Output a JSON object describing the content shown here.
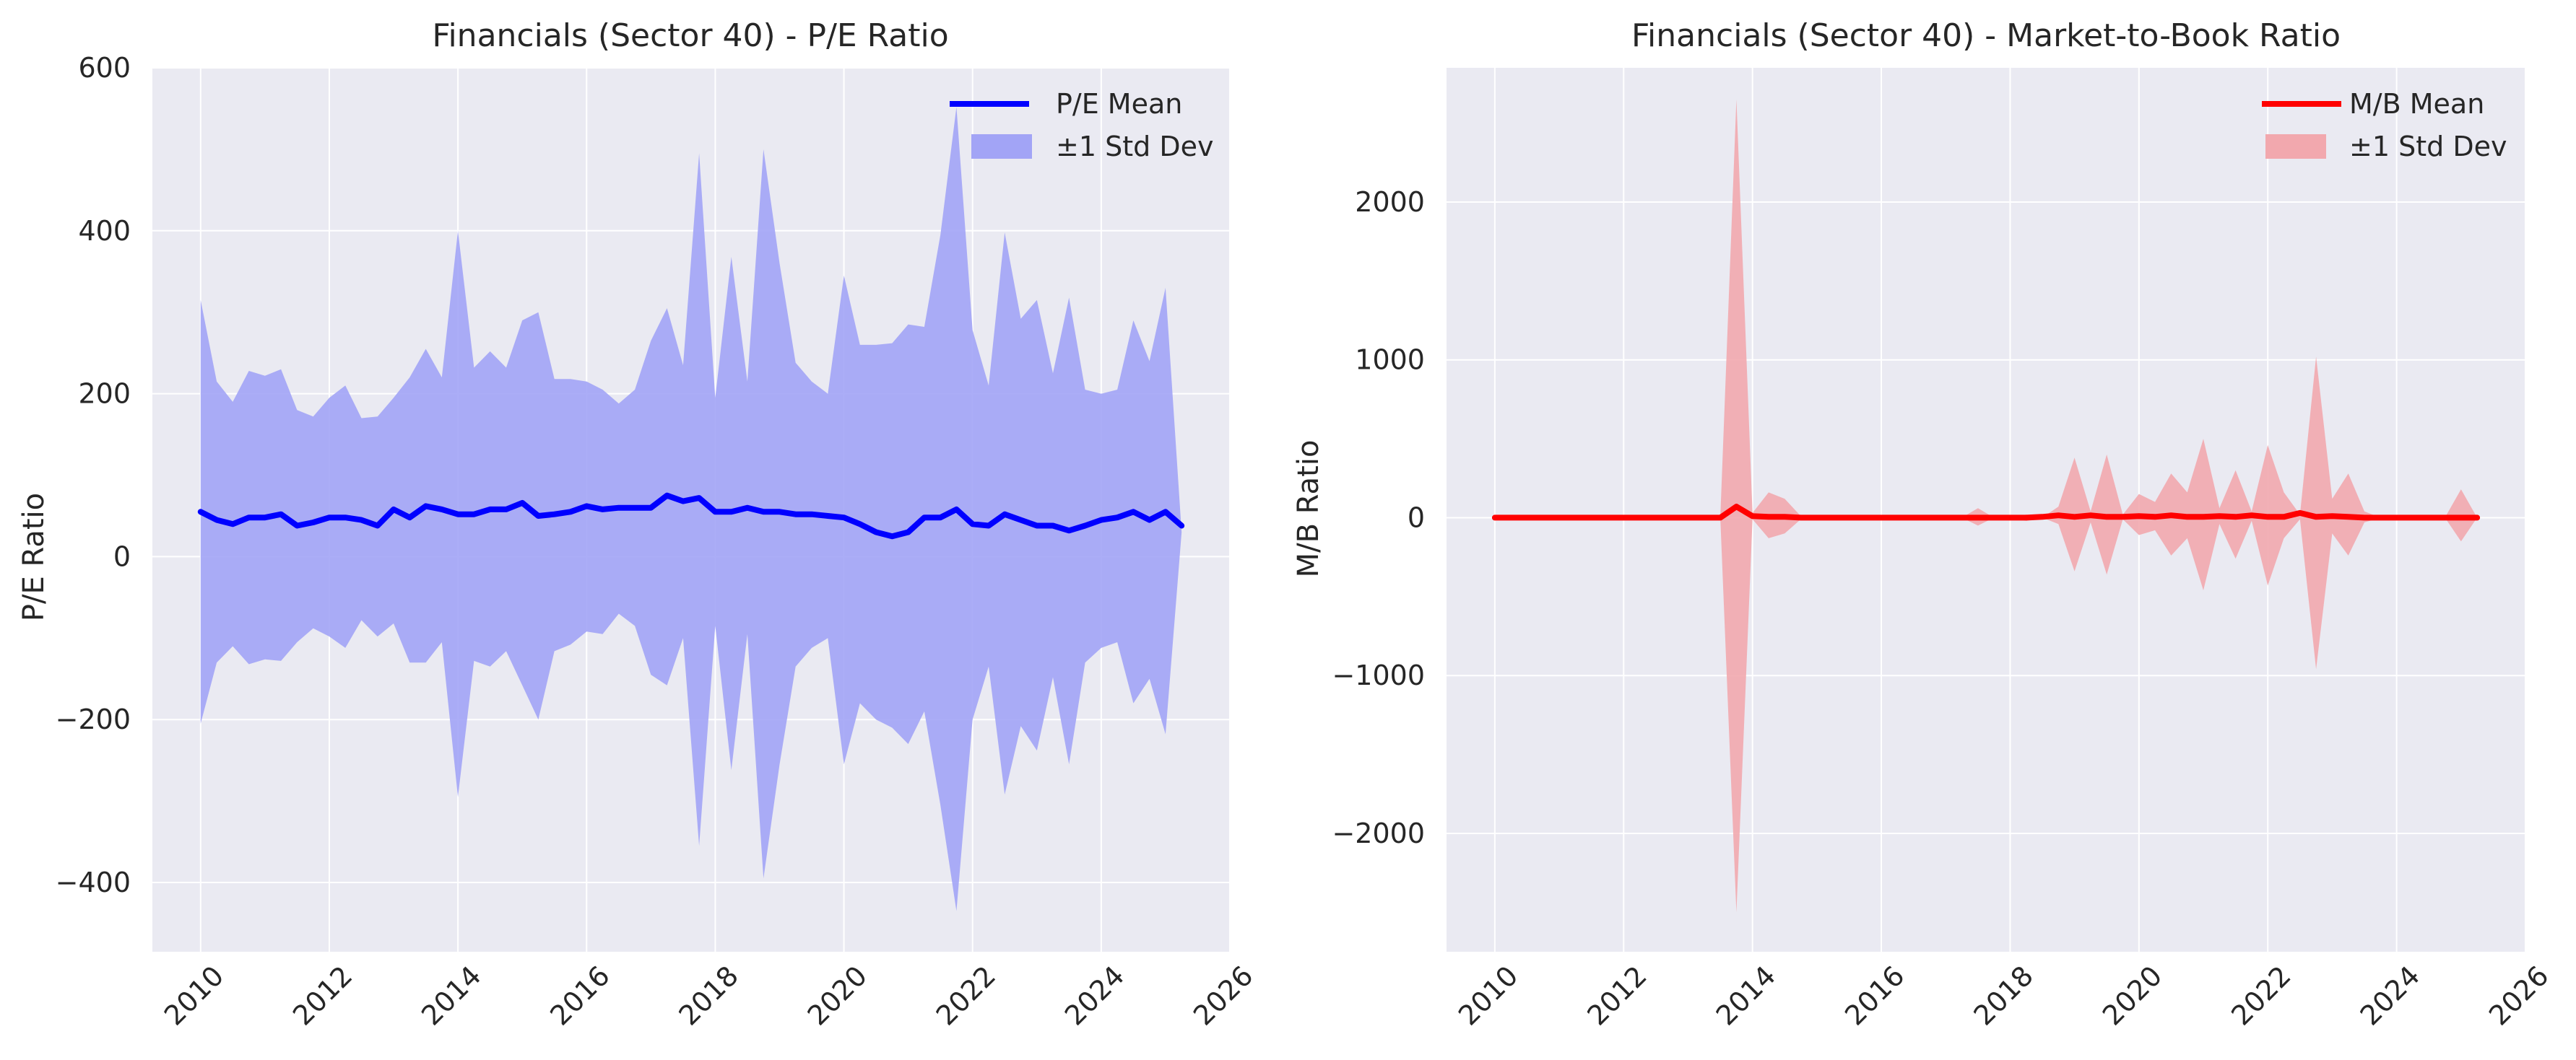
{
  "colors": {
    "panel_bg": "#EAEAF2",
    "grid": "#FFFFFF",
    "pe_line": "#0000FF",
    "pe_band": "#A2A4F6",
    "mb_line": "#FF0000",
    "mb_band": "#F2A8AE"
  },
  "chart_data": [
    {
      "type": "area",
      "title": "Financials (Sector 40) - P/E Ratio",
      "xlabel": "",
      "ylabel": "P/E Ratio",
      "xlim": [
        2009.25,
        2026.0
      ],
      "ylim": [
        -485,
        600
      ],
      "xticks": [
        2010,
        2012,
        2014,
        2016,
        2018,
        2020,
        2022,
        2024,
        2026
      ],
      "yticks": [
        -400,
        -200,
        0,
        200,
        400,
        600
      ],
      "ytick_labels": [
        "−400",
        "−200",
        "0",
        "200",
        "400",
        "600"
      ],
      "grid": true,
      "legend_position": "top-right",
      "legend": [
        "P/E Mean",
        "±1 Std Dev"
      ],
      "x": [
        2010.0,
        2010.25,
        2010.5,
        2010.75,
        2011.0,
        2011.25,
        2011.5,
        2011.75,
        2012.0,
        2012.25,
        2012.5,
        2012.75,
        2013.0,
        2013.25,
        2013.5,
        2013.75,
        2014.0,
        2014.25,
        2014.5,
        2014.75,
        2015.0,
        2015.25,
        2015.5,
        2015.75,
        2016.0,
        2016.25,
        2016.5,
        2016.75,
        2017.0,
        2017.25,
        2017.5,
        2017.75,
        2018.0,
        2018.25,
        2018.5,
        2018.75,
        2019.0,
        2019.25,
        2019.5,
        2019.75,
        2020.0,
        2020.25,
        2020.5,
        2020.75,
        2021.0,
        2021.25,
        2021.5,
        2021.75,
        2022.0,
        2022.25,
        2022.5,
        2022.75,
        2023.0,
        2023.25,
        2023.5,
        2023.75,
        2024.0,
        2024.25,
        2024.5,
        2024.75,
        2025.0,
        2025.25
      ],
      "series": [
        {
          "name": "P/E Mean",
          "values": [
            55,
            45,
            40,
            48,
            48,
            52,
            38,
            42,
            48,
            48,
            45,
            38,
            58,
            48,
            62,
            58,
            52,
            52,
            58,
            58,
            66,
            50,
            52,
            55,
            62,
            58,
            60,
            60,
            60,
            75,
            68,
            72,
            55,
            55,
            60,
            55,
            55,
            52,
            52,
            50,
            48,
            40,
            30,
            25,
            30,
            48,
            48,
            58,
            40,
            38,
            52,
            45,
            38,
            38,
            32,
            38,
            45,
            48,
            55,
            45,
            55,
            38
          ]
        },
        {
          "name": "±1 Std Dev",
          "upper": [
            315,
            215,
            190,
            228,
            222,
            230,
            180,
            172,
            195,
            210,
            170,
            172,
            195,
            220,
            255,
            220,
            400,
            232,
            252,
            232,
            290,
            300,
            218,
            218,
            215,
            205,
            188,
            205,
            265,
            305,
            235,
            495,
            195,
            368,
            215,
            500,
            360,
            238,
            215,
            200,
            345,
            260,
            260,
            262,
            285,
            282,
            395,
            552,
            278,
            210,
            398,
            292,
            315,
            225,
            318,
            205,
            200,
            205,
            290,
            240,
            330,
            30
          ],
          "lower": [
            -205,
            -130,
            -110,
            -132,
            -126,
            -128,
            -105,
            -88,
            -98,
            -112,
            -78,
            -98,
            -82,
            -130,
            -130,
            -105,
            -295,
            -128,
            -135,
            -116,
            -158,
            -200,
            -116,
            -108,
            -92,
            -95,
            -70,
            -85,
            -145,
            -158,
            -100,
            -355,
            -85,
            -262,
            -95,
            -395,
            -255,
            -135,
            -112,
            -100,
            -255,
            -180,
            -200,
            -210,
            -230,
            -190,
            -305,
            -435,
            -200,
            -135,
            -292,
            -208,
            -238,
            -148,
            -255,
            -130,
            -112,
            -105,
            -180,
            -150,
            -218,
            30
          ]
        }
      ]
    },
    {
      "type": "area",
      "title": "Financials (Sector 40) - Market-to-Book Ratio",
      "xlabel": "",
      "ylabel": "M/B Ratio",
      "xlim": [
        2009.25,
        2026.0
      ],
      "ylim": [
        -2750,
        2850
      ],
      "xticks": [
        2010,
        2012,
        2014,
        2016,
        2018,
        2020,
        2022,
        2024,
        2026
      ],
      "yticks": [
        -2000,
        -1000,
        0,
        1000,
        2000
      ],
      "ytick_labels": [
        "−2000",
        "−1000",
        "0",
        "1000",
        "2000"
      ],
      "grid": true,
      "legend_position": "top-right",
      "legend": [
        "M/B Mean",
        "±1 Std Dev"
      ],
      "x": [
        2010.0,
        2010.25,
        2010.5,
        2010.75,
        2011.0,
        2011.25,
        2011.5,
        2011.75,
        2012.0,
        2012.25,
        2012.5,
        2012.75,
        2013.0,
        2013.25,
        2013.5,
        2013.75,
        2014.0,
        2014.25,
        2014.5,
        2014.75,
        2015.0,
        2015.25,
        2015.5,
        2015.75,
        2016.0,
        2016.25,
        2016.5,
        2016.75,
        2017.0,
        2017.25,
        2017.5,
        2017.75,
        2018.0,
        2018.25,
        2018.5,
        2018.75,
        2019.0,
        2019.25,
        2019.5,
        2019.75,
        2020.0,
        2020.25,
        2020.5,
        2020.75,
        2021.0,
        2021.25,
        2021.5,
        2021.75,
        2022.0,
        2022.25,
        2022.5,
        2022.75,
        2023.0,
        2023.25,
        2023.5,
        2023.75,
        2024.0,
        2024.25,
        2024.5,
        2024.75,
        2025.0,
        2025.25
      ],
      "series": [
        {
          "name": "M/B Mean",
          "values": [
            0,
            0,
            0,
            0,
            0,
            0,
            0,
            0,
            0,
            0,
            0,
            0,
            0,
            0,
            0,
            70,
            10,
            5,
            5,
            0,
            0,
            0,
            0,
            0,
            0,
            0,
            0,
            0,
            0,
            0,
            0,
            0,
            0,
            0,
            5,
            15,
            5,
            15,
            5,
            5,
            10,
            5,
            15,
            5,
            5,
            10,
            5,
            15,
            5,
            5,
            30,
            5,
            10,
            5,
            0,
            0,
            0,
            0,
            0,
            0,
            0,
            0
          ]
        },
        {
          "name": "±1 Std Dev",
          "upper": [
            0,
            0,
            0,
            0,
            15,
            0,
            0,
            0,
            0,
            0,
            0,
            0,
            0,
            0,
            0,
            2650,
            30,
            160,
            120,
            10,
            0,
            0,
            0,
            0,
            0,
            0,
            0,
            0,
            0,
            0,
            60,
            0,
            0,
            20,
            0,
            70,
            380,
            40,
            400,
            20,
            150,
            100,
            280,
            160,
            500,
            60,
            300,
            40,
            460,
            160,
            20,
            1020,
            120,
            280,
            40,
            0,
            0,
            0,
            0,
            0,
            180,
            0
          ],
          "lower": [
            0,
            0,
            0,
            0,
            -15,
            0,
            0,
            0,
            0,
            0,
            0,
            0,
            0,
            0,
            0,
            -2500,
            -10,
            -130,
            -100,
            -10,
            0,
            0,
            0,
            0,
            0,
            0,
            0,
            0,
            0,
            0,
            -50,
            0,
            0,
            -20,
            0,
            -40,
            -340,
            -30,
            -360,
            -10,
            -110,
            -80,
            -240,
            -130,
            -460,
            -40,
            -260,
            -20,
            -430,
            -130,
            -10,
            -960,
            -100,
            -240,
            -30,
            0,
            0,
            0,
            0,
            0,
            -150,
            0
          ]
        }
      ]
    }
  ]
}
